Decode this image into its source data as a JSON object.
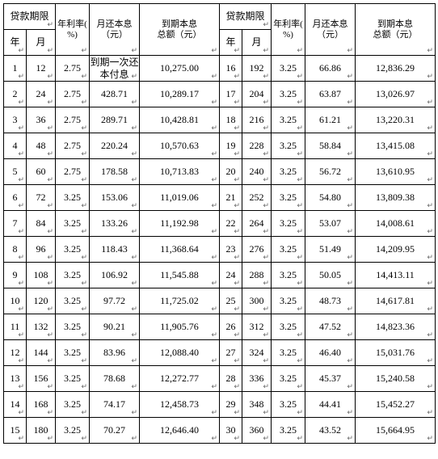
{
  "headers": {
    "loan_term": "贷款期限",
    "year": "年",
    "month": "月",
    "annual_rate": "年利率(%)",
    "monthly_payment": "月还本息（元）",
    "total_due": "到期本息总额（元）"
  },
  "marker": "↵",
  "left": [
    {
      "y": "1",
      "m": "12",
      "r": "2.75",
      "p": "到期一次还本付息",
      "t": "10,275.00"
    },
    {
      "y": "2",
      "m": "24",
      "r": "2.75",
      "p": "428.71",
      "t": "10,289.17"
    },
    {
      "y": "3",
      "m": "36",
      "r": "2.75",
      "p": "289.71",
      "t": "10,428.81"
    },
    {
      "y": "4",
      "m": "48",
      "r": "2.75",
      "p": "220.24",
      "t": "10,570.63"
    },
    {
      "y": "5",
      "m": "60",
      "r": "2.75",
      "p": "178.58",
      "t": "10,713.83"
    },
    {
      "y": "6",
      "m": "72",
      "r": "3.25",
      "p": "153.06",
      "t": "11,019.06"
    },
    {
      "y": "7",
      "m": "84",
      "r": "3.25",
      "p": "133.26",
      "t": "11,192.98"
    },
    {
      "y": "8",
      "m": "96",
      "r": "3.25",
      "p": "118.43",
      "t": "11,368.64"
    },
    {
      "y": "9",
      "m": "108",
      "r": "3.25",
      "p": "106.92",
      "t": "11,545.88"
    },
    {
      "y": "10",
      "m": "120",
      "r": "3.25",
      "p": "97.72",
      "t": "11,725.02"
    },
    {
      "y": "11",
      "m": "132",
      "r": "3.25",
      "p": "90.21",
      "t": "11,905.76"
    },
    {
      "y": "12",
      "m": "144",
      "r": "3.25",
      "p": "83.96",
      "t": "12,088.40"
    },
    {
      "y": "13",
      "m": "156",
      "r": "3.25",
      "p": "78.68",
      "t": "12,272.77"
    },
    {
      "y": "14",
      "m": "168",
      "r": "3.25",
      "p": "74.17",
      "t": "12,458.73"
    },
    {
      "y": "15",
      "m": "180",
      "r": "3.25",
      "p": "70.27",
      "t": "12,646.40"
    }
  ],
  "right": [
    {
      "y": "16",
      "m": "192",
      "r": "3.25",
      "p": "66.86",
      "t": "12,836.29"
    },
    {
      "y": "17",
      "m": "204",
      "r": "3.25",
      "p": "63.87",
      "t": "13,026.97"
    },
    {
      "y": "18",
      "m": "216",
      "r": "3.25",
      "p": "61.21",
      "t": "13,220.31"
    },
    {
      "y": "19",
      "m": "228",
      "r": "3.25",
      "p": "58.84",
      "t": "13,415.08"
    },
    {
      "y": "20",
      "m": "240",
      "r": "3.25",
      "p": "56.72",
      "t": "13,610.95"
    },
    {
      "y": "21",
      "m": "252",
      "r": "3.25",
      "p": "54.80",
      "t": "13,809.38"
    },
    {
      "y": "22",
      "m": "264",
      "r": "3.25",
      "p": "53.07",
      "t": "14,008.61"
    },
    {
      "y": "23",
      "m": "276",
      "r": "3.25",
      "p": "51.49",
      "t": "14,209.95"
    },
    {
      "y": "24",
      "m": "288",
      "r": "3.25",
      "p": "50.05",
      "t": "14,413.11"
    },
    {
      "y": "25",
      "m": "300",
      "r": "3.25",
      "p": "48.73",
      "t": "14,617.81"
    },
    {
      "y": "26",
      "m": "312",
      "r": "3.25",
      "p": "47.52",
      "t": "14,823.36"
    },
    {
      "y": "27",
      "m": "324",
      "r": "3.25",
      "p": "46.40",
      "t": "15,031.76"
    },
    {
      "y": "28",
      "m": "336",
      "r": "3.25",
      "p": "45.37",
      "t": "15,240.58"
    },
    {
      "y": "29",
      "m": "348",
      "r": "3.25",
      "p": "44.41",
      "t": "15,452.27"
    },
    {
      "y": "30",
      "m": "360",
      "r": "3.25",
      "p": "43.52",
      "t": "15,664.95"
    }
  ],
  "col_widths": {
    "year": 28,
    "month": 36,
    "rate": 42,
    "pay": 62,
    "total": 99
  }
}
